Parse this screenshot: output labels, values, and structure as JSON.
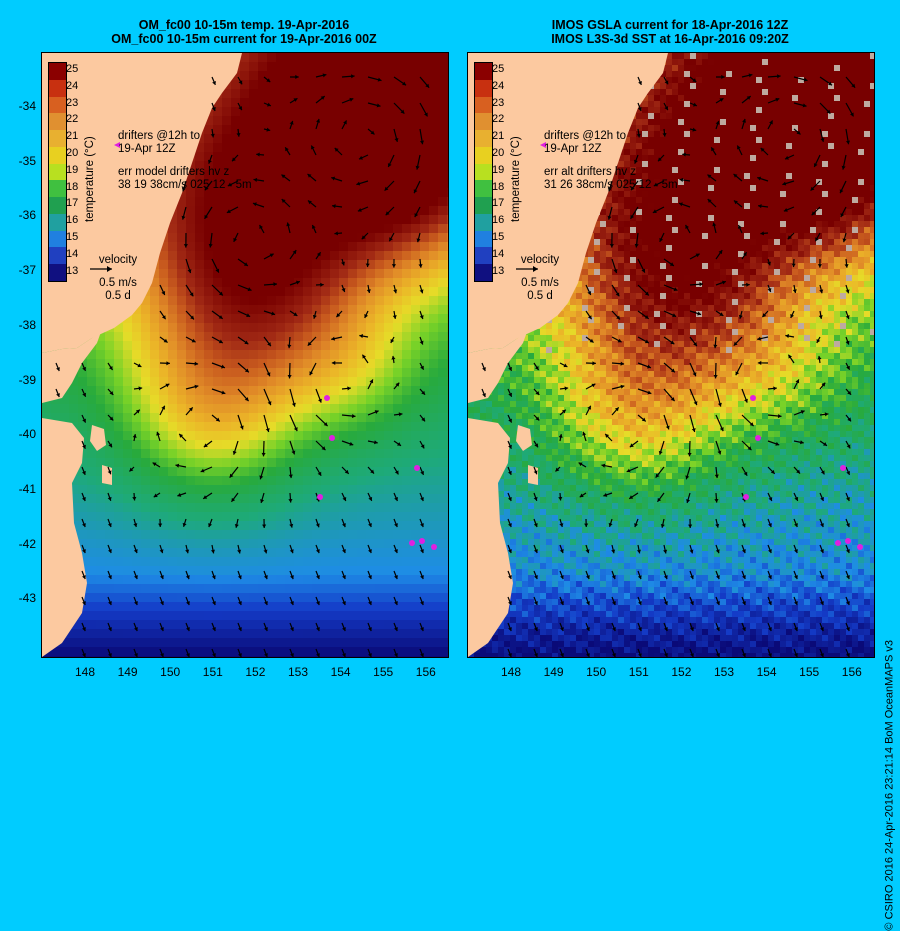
{
  "titles": {
    "left": [
      "OM_fc00 10-15m temp. 19-Apr-2016",
      "OM_fc00 10-15m current for 19-Apr-2016 00Z"
    ],
    "right": [
      "IMOS GSLA current for 18-Apr-2016 12Z",
      "IMOS L3S-3d SST at 16-Apr-2016 09:20Z"
    ]
  },
  "axes": {
    "lat_labels": [
      "-34",
      "-35",
      "-36",
      "-37",
      "-38",
      "-39",
      "-40",
      "-41",
      "-42",
      "-43"
    ],
    "lon_labels": [
      "148",
      "149",
      "150",
      "151",
      "152",
      "153",
      "154",
      "155",
      "156"
    ]
  },
  "colorbar": {
    "title": "temperature (°C)",
    "ticks": [
      "25",
      "24",
      "23",
      "22",
      "21",
      "20",
      "19",
      "18",
      "17",
      "16",
      "15",
      "14",
      "13"
    ],
    "colors": [
      "#8b0000",
      "#c83010",
      "#d86020",
      "#e09030",
      "#e8b030",
      "#e8d020",
      "#b8e020",
      "#40c040",
      "#20a050",
      "#20a0a0",
      "#2080e0",
      "#2040c0",
      "#101080"
    ]
  },
  "left_annotations": {
    "drifters_line1": "drifters @12h to",
    "drifters_line2": "19-Apr 12Z",
    "err_line1": "err model drifters hv z",
    "err_line2": "38 19 38cm/s 025 12 - 5m",
    "velocity": "velocity",
    "velocity_scale": "0.5 m/s",
    "velocity_time": "0.5 d"
  },
  "right_annotations": {
    "drifters_line1": "drifters @12h to",
    "drifters_line2": "19-Apr 12Z",
    "err_line1": "err alt drifters hv z",
    "err_line2": "31 26 38cm/s 025 12 - 5m",
    "velocity": "velocity",
    "velocity_scale": "0.5 m/s",
    "velocity_time": "0.5 d"
  },
  "credit": "© CSIRO 2016  24-Apr-2016 23:21:14 BoM OceanMAPS v3"
}
